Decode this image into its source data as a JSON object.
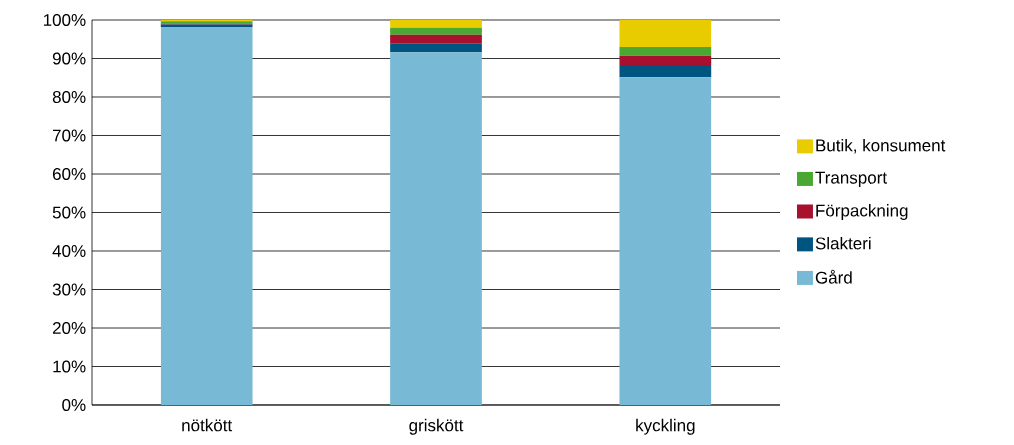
{
  "chart_data": {
    "type": "bar",
    "stacked": true,
    "categories": [
      "nötkött",
      "griskött",
      "kyckling"
    ],
    "series": [
      {
        "name": "Gård",
        "color": "#78bad5",
        "values": [
          98.2,
          91.6,
          85.1
        ]
      },
      {
        "name": "Slakteri",
        "color": "#005580",
        "values": [
          0.6,
          2.2,
          3.2
        ]
      },
      {
        "name": "Förpackning",
        "color": "#a8102e",
        "values": [
          0.2,
          2.4,
          2.4
        ]
      },
      {
        "name": "Transport",
        "color": "#4aa832",
        "values": [
          0.7,
          1.8,
          2.3
        ]
      },
      {
        "name": "Butik, konsument",
        "color": "#e8cc00",
        "values": [
          0.3,
          2.0,
          7.0
        ]
      }
    ],
    "ylim": [
      0,
      100
    ],
    "yticks": [
      {
        "value": 0,
        "label": "0%"
      },
      {
        "value": 10,
        "label": "10%"
      },
      {
        "value": 20,
        "label": "20%"
      },
      {
        "value": 30,
        "label": "30%"
      },
      {
        "value": 40,
        "label": "40%"
      },
      {
        "value": 50,
        "label": "50%"
      },
      {
        "value": 60,
        "label": "60%"
      },
      {
        "value": 70,
        "label": "70%"
      },
      {
        "value": 80,
        "label": "80%"
      },
      {
        "value": 90,
        "label": "90%"
      },
      {
        "value": 100,
        "label": "100%"
      }
    ],
    "grid": "y",
    "legend": "right"
  }
}
